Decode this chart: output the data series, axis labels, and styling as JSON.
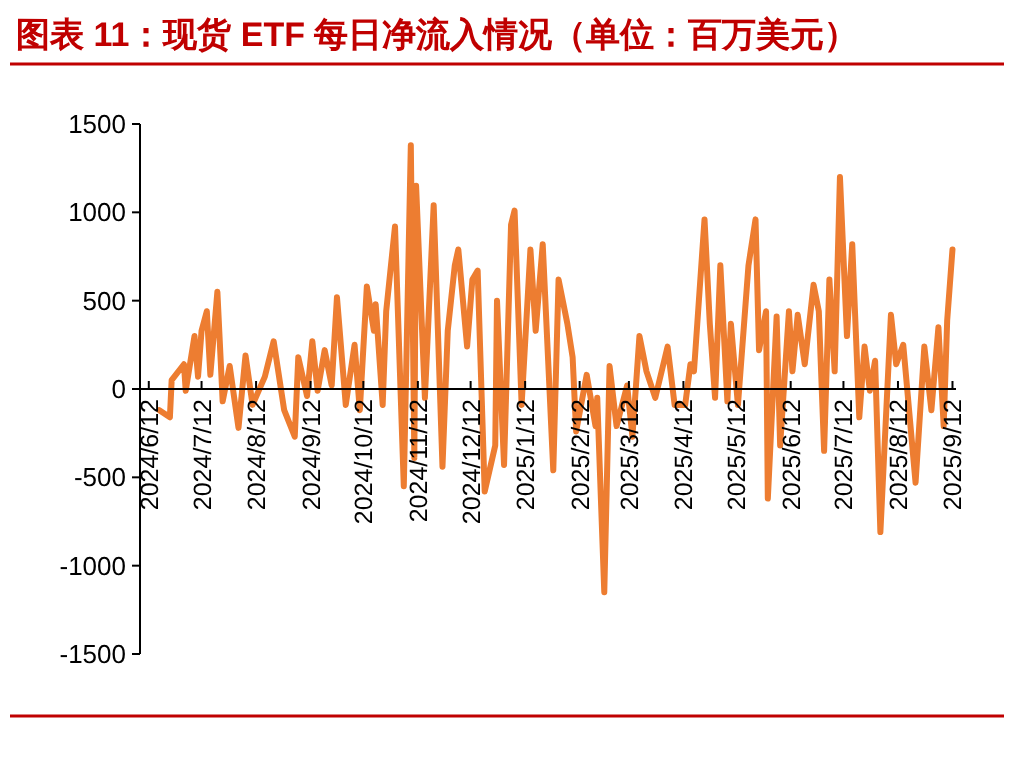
{
  "chart_data": {
    "type": "line",
    "title": "图表 11：现货 ETF 每日净流入情况（单位：百万美元）",
    "x": [
      "2024-06-18",
      "2024-06-24",
      "2024-06-25",
      "2024-07-02",
      "2024-07-03",
      "2024-07-08",
      "2024-07-10",
      "2024-07-12",
      "2024-07-15",
      "2024-07-17",
      "2024-07-21",
      "2024-07-24",
      "2024-07-28",
      "2024-08-02",
      "2024-08-06",
      "2024-08-10",
      "2024-08-17",
      "2024-08-22",
      "2024-08-28",
      "2024-09-03",
      "2024-09-05",
      "2024-09-10",
      "2024-09-13",
      "2024-09-16",
      "2024-09-20",
      "2024-09-24",
      "2024-09-27",
      "2024-10-02",
      "2024-10-07",
      "2024-10-10",
      "2024-10-14",
      "2024-10-18",
      "2024-10-19",
      "2024-10-23",
      "2024-10-25",
      "2024-10-30",
      "2024-11-04",
      "2024-11-08",
      "2024-11-10",
      "2024-11-11",
      "2024-11-16",
      "2024-11-21",
      "2024-11-26",
      "2024-11-29",
      "2024-12-03",
      "2024-12-05",
      "2024-12-10",
      "2024-12-13",
      "2024-12-16",
      "2024-12-20",
      "2024-12-26",
      "2024-12-27",
      "2024-12-31",
      "2025-01-04",
      "2025-01-06",
      "2025-01-10",
      "2025-01-15",
      "2025-01-18",
      "2025-01-22",
      "2025-01-28",
      "2025-01-31",
      "2025-02-05",
      "2025-02-08",
      "2025-02-10",
      "2025-02-16",
      "2025-02-21",
      "2025-02-22",
      "2025-02-26",
      "2025-03-01",
      "2025-03-05",
      "2025-03-11",
      "2025-03-14",
      "2025-03-18",
      "2025-03-22",
      "2025-03-27",
      "2025-04-03",
      "2025-04-07",
      "2025-04-13",
      "2025-04-16",
      "2025-04-18",
      "2025-04-24",
      "2025-04-27",
      "2025-04-30",
      "2025-05-03",
      "2025-05-07",
      "2025-05-09",
      "2025-05-13",
      "2025-05-19",
      "2025-05-23",
      "2025-05-25",
      "2025-05-29",
      "2025-05-30",
      "2025-06-04",
      "2025-06-06",
      "2025-06-11",
      "2025-06-13",
      "2025-06-16",
      "2025-06-20",
      "2025-06-25",
      "2025-06-28",
      "2025-07-01",
      "2025-07-04",
      "2025-07-07",
      "2025-07-10",
      "2025-07-14",
      "2025-07-17",
      "2025-07-21",
      "2025-07-24",
      "2025-07-27",
      "2025-07-30",
      "2025-08-02",
      "2025-08-08",
      "2025-08-11",
      "2025-08-15",
      "2025-08-22",
      "2025-08-27",
      "2025-08-31",
      "2025-09-04",
      "2025-09-07",
      "2025-09-09",
      "2025-09-12"
    ],
    "series": [
      {
        "color": "#ed7d31",
        "values": [
          -120,
          -160,
          50,
          140,
          -10,
          300,
          70,
          330,
          440,
          80,
          550,
          -70,
          130,
          -220,
          190,
          -90,
          70,
          270,
          -120,
          -270,
          180,
          -40,
          270,
          -10,
          220,
          20,
          520,
          -90,
          250,
          -120,
          580,
          330,
          480,
          -90,
          440,
          920,
          -550,
          1380,
          -390,
          1150,
          -50,
          1040,
          -440,
          330,
          700,
          790,
          240,
          620,
          670,
          -580,
          -320,
          500,
          -430,
          930,
          1010,
          -90,
          790,
          330,
          820,
          -460,
          620,
          370,
          180,
          -240,
          80,
          -210,
          -50,
          -1150,
          130,
          -210,
          20,
          -270,
          300,
          100,
          -50,
          240,
          -90,
          -90,
          140,
          100,
          960,
          370,
          -50,
          700,
          -70,
          370,
          -90,
          700,
          960,
          220,
          440,
          -620,
          410,
          -320,
          440,
          100,
          420,
          140,
          590,
          440,
          -350,
          620,
          100,
          1200,
          300,
          820,
          -160,
          240,
          -10,
          160,
          -810,
          420,
          140,
          250,
          -530,
          240,
          -120,
          350,
          -210,
          390,
          790
        ]
      }
    ],
    "xlim": [
      "2024-06-07",
      "2025-09-14"
    ],
    "xticks": [
      {
        "value": "2024-06-12",
        "label": "2024/6/12"
      },
      {
        "value": "2024-07-12",
        "label": "2024/7/12"
      },
      {
        "value": "2024-08-12",
        "label": "2024/8/12"
      },
      {
        "value": "2024-09-12",
        "label": "2024/9/12"
      },
      {
        "value": "2024-10-12",
        "label": "2024/10/12"
      },
      {
        "value": "2024-11-12",
        "label": "2024/11/12"
      },
      {
        "value": "2024-12-12",
        "label": "2024/12/12"
      },
      {
        "value": "2025-01-12",
        "label": "2025/1/12"
      },
      {
        "value": "2025-02-12",
        "label": "2025/2/12"
      },
      {
        "value": "2025-03-12",
        "label": "2025/3/12"
      },
      {
        "value": "2025-04-12",
        "label": "2025/4/12"
      },
      {
        "value": "2025-05-12",
        "label": "2025/5/12"
      },
      {
        "value": "2025-06-12",
        "label": "2025/6/12"
      },
      {
        "value": "2025-07-12",
        "label": "2025/7/12"
      },
      {
        "value": "2025-08-12",
        "label": "2025/8/12"
      },
      {
        "value": "2025-09-12",
        "label": "2025/9/12"
      }
    ],
    "ylim": [
      -1500,
      1500
    ],
    "yticks": [
      -1500,
      -1000,
      -500,
      0,
      500,
      1000,
      1500
    ]
  }
}
